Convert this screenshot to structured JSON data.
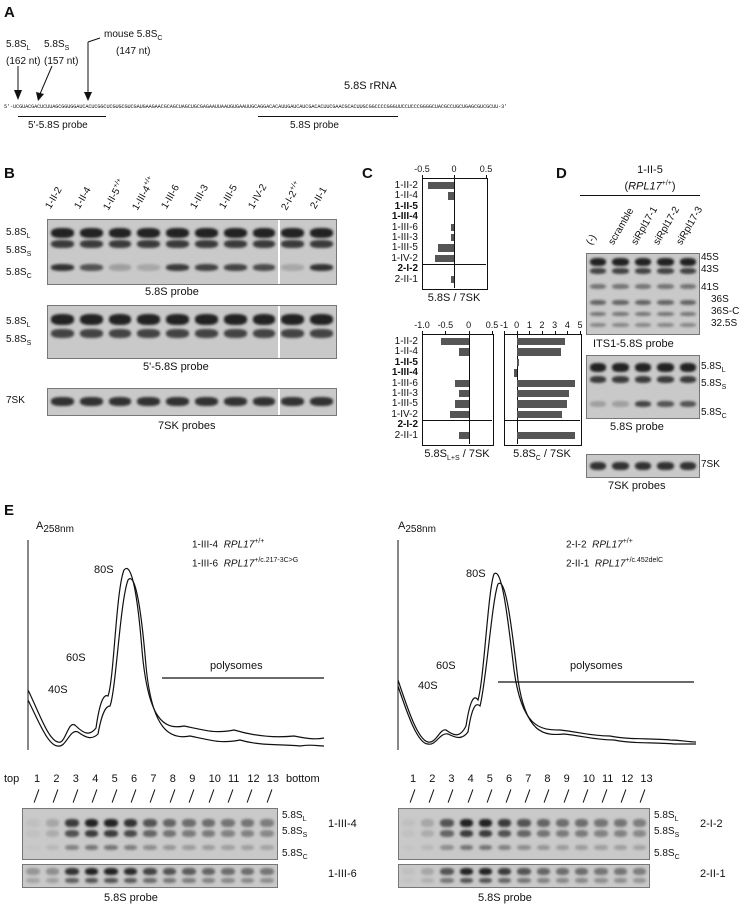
{
  "panels": {
    "A": {
      "letter": "A",
      "markers": [
        {
          "label": "5.8S",
          "sub": "L",
          "nt": "(162 nt)"
        },
        {
          "label": "5.8S",
          "sub": "S",
          "nt": "(157 nt)"
        },
        {
          "label": "mouse 5.8S",
          "sub": "C",
          "nt": "(147 nt)"
        }
      ],
      "title": "5.8S rRNA",
      "sequence": "5'-UCGUACGACUCUUAGCGGUGGAUCACUCGGCUCGUGCGUCGAUGAAGAACGCAGCUAGCUGCGAGAAUUAAUGUGAAUUGCAGGACACAUUGAUCAUCGACACUUCGAACGCACUUGCGGCCCCGGGUUCCUCCCGGGGCUACGCCUGCUGAGCGUCGCUU-3'",
      "probe1": "5'-5.8S probe",
      "probe2": "5.8S probe"
    },
    "B": {
      "letter": "B",
      "lanes": [
        "1-II-2",
        "1-II-4",
        "1-II-5",
        "1-III-4",
        "1-III-6",
        "1-III-3",
        "1-III-5",
        "1-IV-2",
        "2-I-2",
        "2-II-1"
      ],
      "lane_sup": [
        "",
        "",
        "+/+",
        "+/+",
        "",
        "",
        "",
        "",
        "+/+",
        ""
      ],
      "blot1_labels": [
        {
          "t": "5.8S",
          "s": "L"
        },
        {
          "t": "5.8S",
          "s": "S"
        },
        {
          "t": "5.8S",
          "s": "C"
        }
      ],
      "blot1_caption": "5.8S probe",
      "blot2_labels": [
        {
          "t": "5.8S",
          "s": "L"
        },
        {
          "t": "5.8S",
          "s": "S"
        }
      ],
      "blot2_caption": "5'-5.8S probe",
      "blot3_label": "7SK",
      "blot3_caption": "7SK probes"
    },
    "C": {
      "letter": "C",
      "rows": [
        "1-II-2",
        "1-II-4",
        "1-II-5",
        "1-III-4",
        "1-III-6",
        "1-III-3",
        "1-III-5",
        "1-IV-2",
        "2-I-2",
        "2-II-1"
      ],
      "bold_rows": [
        false,
        false,
        true,
        true,
        false,
        false,
        false,
        false,
        true,
        false
      ]
    },
    "D": {
      "letter": "D",
      "header": "1-II-5",
      "header_gene": "RPL17",
      "header_sup": "+/+",
      "lanes": [
        "(-)",
        "scramble",
        "siRpl17-1",
        "siRpl17-2",
        "siRpl17-3"
      ],
      "blot1_labels": [
        "45S",
        "43S",
        "41S",
        "36S",
        "36S-C",
        "32.5S"
      ],
      "blot1_caption": "ITS1-5.8S probe",
      "blot2_labels": [
        {
          "t": "5.8S",
          "s": "L"
        },
        {
          "t": "5.8S",
          "s": "S"
        },
        {
          "t": "5.8S",
          "s": "C"
        }
      ],
      "blot2_caption": "5.8S probe",
      "blot3_label": "7SK",
      "blot3_caption": "7SK probes"
    },
    "E": {
      "letter": "E",
      "left": {
        "axis": "A",
        "axis_sub": "258nm",
        "legend1_id": "1-III-4",
        "legend1_gene": "RPL17",
        "legend1_sup": "+/+",
        "legend2_id": "1-III-6",
        "legend2_gene": "RPL17",
        "legend2_sup": "+/c.217-3C>G",
        "peaks": [
          "40S",
          "60S",
          "80S"
        ],
        "polysomes": "polysomes",
        "top": "top",
        "bottom": "bottom",
        "fractions": [
          "1",
          "2",
          "3",
          "4",
          "5",
          "6",
          "7",
          "8",
          "9",
          "10",
          "11",
          "12",
          "13"
        ],
        "blot1_id": "1-III-4",
        "blot2_id": "1-III-6",
        "caption": "5.8S probe"
      },
      "right": {
        "axis": "A",
        "axis_sub": "258nm",
        "legend1_id": "2-I-2",
        "legend1_gene": "RPL17",
        "legend1_sup": "+/+",
        "legend2_id": "2-II-1",
        "legend2_gene": "RPL17",
        "legend2_sup": "+/c.452delC",
        "peaks": [
          "40S",
          "60S",
          "80S"
        ],
        "polysomes": "polysomes",
        "fractions": [
          "1",
          "2",
          "3",
          "4",
          "5",
          "6",
          "7",
          "8",
          "9",
          "10",
          "11",
          "12",
          "13"
        ],
        "blot1_id": "2-I-2",
        "blot2_id": "2-II-1",
        "caption": "5.8S probe"
      },
      "band_labels": [
        {
          "t": "5.8S",
          "s": "L"
        },
        {
          "t": "5.8S",
          "s": "S"
        },
        {
          "t": "5.8S",
          "s": "C"
        }
      ]
    }
  },
  "chart_data": [
    {
      "type": "bar",
      "title": "5.8S / 7SK",
      "categories": [
        "1-II-2",
        "1-II-4",
        "1-II-5",
        "1-III-4",
        "1-III-6",
        "1-III-3",
        "1-III-5",
        "1-IV-2",
        "2-I-2",
        "2-II-1"
      ],
      "values": [
        -0.4,
        -0.1,
        0,
        0,
        -0.05,
        -0.05,
        -0.25,
        -0.3,
        0,
        -0.05
      ],
      "xlim": [
        -0.5,
        0.5
      ],
      "ticks": [
        "-0.5",
        "0",
        "0.5"
      ]
    },
    {
      "type": "bar",
      "title": "5.8S",
      "title_sub": "L+S",
      "title_suffix": " / 7SK",
      "categories": [
        "1-II-2",
        "1-II-4",
        "1-II-5",
        "1-III-4",
        "1-III-6",
        "1-III-3",
        "1-III-5",
        "1-IV-2",
        "2-I-2",
        "2-II-1"
      ],
      "values": [
        -0.6,
        -0.2,
        0,
        0,
        -0.3,
        -0.2,
        -0.3,
        -0.4,
        0,
        -0.2
      ],
      "xlim": [
        -1.0,
        0.5
      ],
      "ticks": [
        "-1.0",
        "-0.5",
        "0",
        "0.5"
      ]
    },
    {
      "type": "bar",
      "title": "5.8S",
      "title_sub": "C",
      "title_suffix": " / 7SK",
      "categories": [
        "1-II-2",
        "1-II-4",
        "1-II-5",
        "1-III-4",
        "1-III-6",
        "1-III-3",
        "1-III-5",
        "1-IV-2",
        "2-I-2",
        "2-II-1"
      ],
      "values": [
        3.8,
        3.5,
        0.1,
        -0.2,
        4.6,
        4.1,
        4.0,
        3.6,
        0,
        4.6
      ],
      "xlim": [
        -1,
        5
      ],
      "ticks": [
        "-1",
        "0",
        "1",
        "2",
        "3",
        "4",
        "5"
      ]
    }
  ]
}
